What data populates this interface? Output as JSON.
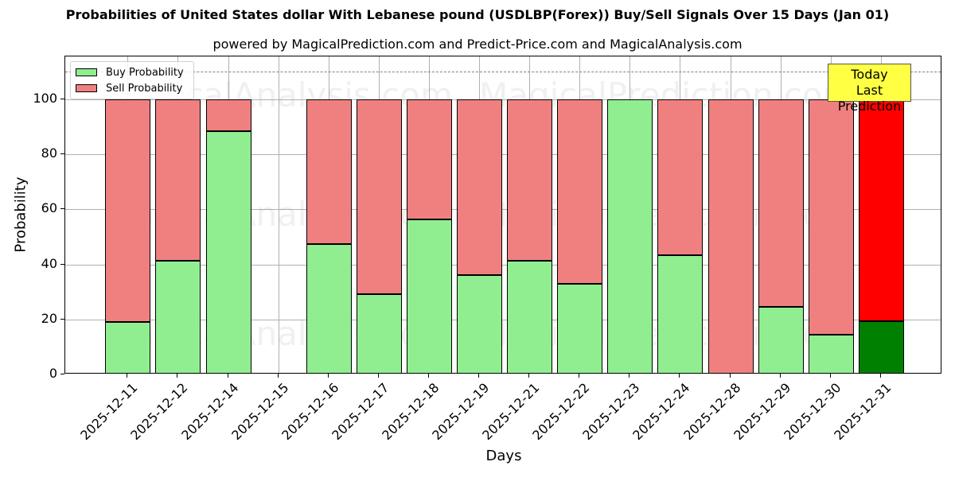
{
  "title": "Probabilities of United States dollar With Lebanese pound (USDLBP(Forex)) Buy/Sell Signals Over 15 Days (Jan 01)",
  "subtitle": "powered by MagicalPrediction.com and Predict-Price.com and MagicalAnalysis.com",
  "legend": {
    "buy": "Buy Probability",
    "sell": "Sell Probability"
  },
  "annotation": {
    "line1": "Today",
    "line2": "Last Prediction"
  },
  "axes": {
    "xlabel": "Days",
    "ylabel": "Probability",
    "yticks": [
      "0",
      "20",
      "40",
      "60",
      "80",
      "100"
    ]
  },
  "watermarks": [
    "MagicalAnalysis.com",
    "MagicalPrediction.com"
  ],
  "colors": {
    "buy": "#90ee90",
    "sell": "#f08080",
    "buy_today": "#008000",
    "sell_today": "#ff0000",
    "annotation_bg": "#ffff44"
  },
  "chart_data": {
    "type": "bar",
    "stacked": true,
    "title": "Probabilities of United States dollar With Lebanese pound (USDLBP(Forex)) Buy/Sell Signals Over 15 Days (Jan 01)",
    "subtitle": "powered by MagicalPrediction.com and Predict-Price.com and MagicalAnalysis.com",
    "xlabel": "Days",
    "ylabel": "Probability",
    "ylim": [
      0,
      115
    ],
    "yticks": [
      0,
      20,
      40,
      60,
      80,
      100
    ],
    "grid": true,
    "legend_position": "upper left",
    "reference_line": {
      "y": 110,
      "style": "dashed"
    },
    "categories": [
      "2025-12-11",
      "2025-12-12",
      "2025-12-14",
      "2025-12-15",
      "2025-12-16",
      "2025-12-17",
      "2025-12-18",
      "2025-12-19",
      "2025-12-21",
      "2025-12-22",
      "2025-12-23",
      "2025-12-24",
      "2025-12-28",
      "2025-12-29",
      "2025-12-30",
      "2025-12-31"
    ],
    "series": [
      {
        "name": "Buy Probability",
        "values": [
          19.2,
          41.2,
          88.3,
          0,
          47.3,
          29.3,
          56.5,
          36.1,
          41.3,
          33.0,
          100,
          43.4,
          0,
          24.5,
          14.5,
          19.3
        ]
      },
      {
        "name": "Sell Probability",
        "values": [
          80.8,
          58.8,
          11.7,
          0,
          52.7,
          70.7,
          43.5,
          63.9,
          58.7,
          67.0,
          0,
          56.6,
          100,
          75.5,
          85.5,
          80.7
        ]
      }
    ],
    "annotations": [
      {
        "text": "Today\nLast Prediction",
        "x": "2025-12-31"
      }
    ]
  }
}
